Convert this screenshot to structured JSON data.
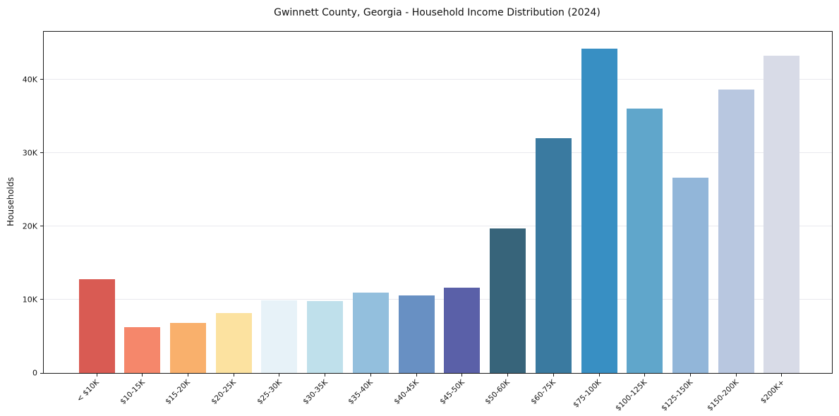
{
  "title": "Gwinnett County, Georgia - Household Income Distribution (2024)",
  "chart_data": {
    "type": "bar",
    "title": "Gwinnett County, Georgia - Household Income Distribution (2024)",
    "xlabel": "",
    "ylabel": "Households",
    "categories": [
      "< $10K",
      "$10-15K",
      "$15-20K",
      "$20-25K",
      "$25-30K",
      "$30-35K",
      "$35-40K",
      "$40-45K",
      "$45-50K",
      "$50-60K",
      "$60-75K",
      "$75-100K",
      "$100-125K",
      "$125-150K",
      "$150-200K",
      "$200K+"
    ],
    "values": [
      12800,
      6200,
      6800,
      8200,
      9900,
      9800,
      11000,
      10600,
      11600,
      19700,
      32000,
      44200,
      36000,
      26600,
      38600,
      43200
    ],
    "bar_colors": [
      "#d95b53",
      "#f5876b",
      "#f9b06c",
      "#fce2a0",
      "#e7f2f8",
      "#bfe0eb",
      "#93bfdd",
      "#6890c3",
      "#5a60a8",
      "#37647a",
      "#3a7aa0",
      "#388fc3",
      "#60a6cb",
      "#92b6d9",
      "#b8c7e0",
      "#d8dbe7"
    ],
    "ylim": [
      0,
      46500
    ],
    "yticks": [
      {
        "value": 0,
        "label": "0"
      },
      {
        "value": 10000,
        "label": "10K"
      },
      {
        "value": 20000,
        "label": "20K"
      },
      {
        "value": 30000,
        "label": "30K"
      },
      {
        "value": 40000,
        "label": "40K"
      }
    ],
    "grid": "horizontal",
    "legend": "none",
    "colors": {
      "background": "#ffffff",
      "spine": "#1a1a1a",
      "grid": "#e9e9ee",
      "text": "#111111"
    }
  }
}
